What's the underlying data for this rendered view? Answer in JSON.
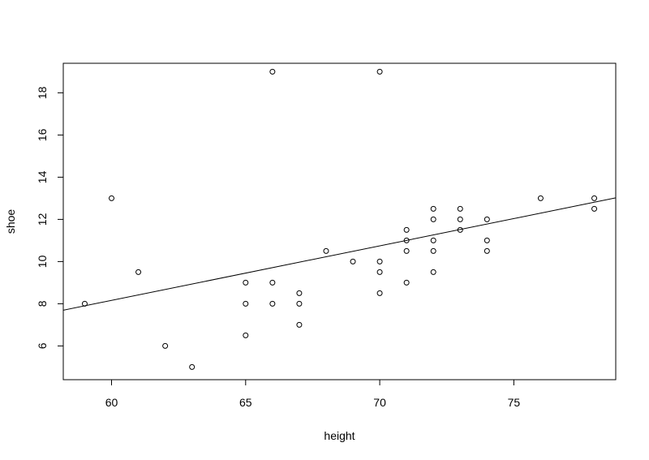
{
  "chart_data": {
    "type": "scatter",
    "title": "",
    "xlabel": "height",
    "ylabel": "shoe",
    "xlim": [
      58.2,
      78.8
    ],
    "ylim": [
      4.4,
      19.4
    ],
    "x_ticks": [
      60,
      65,
      70,
      75
    ],
    "y_ticks": [
      6,
      8,
      10,
      12,
      14,
      16,
      18
    ],
    "grid": false,
    "colors": {
      "points": "#000000",
      "line": "#000000",
      "background": "#ffffff"
    },
    "points": [
      {
        "x": 59,
        "y": 8
      },
      {
        "x": 60,
        "y": 13
      },
      {
        "x": 61,
        "y": 9.5
      },
      {
        "x": 62,
        "y": 6
      },
      {
        "x": 63,
        "y": 5
      },
      {
        "x": 65,
        "y": 9
      },
      {
        "x": 65,
        "y": 8
      },
      {
        "x": 65,
        "y": 6.5
      },
      {
        "x": 66,
        "y": 19
      },
      {
        "x": 66,
        "y": 9
      },
      {
        "x": 66,
        "y": 8
      },
      {
        "x": 67,
        "y": 8.5
      },
      {
        "x": 67,
        "y": 8
      },
      {
        "x": 67,
        "y": 7
      },
      {
        "x": 68,
        "y": 10.5
      },
      {
        "x": 69,
        "y": 10
      },
      {
        "x": 70,
        "y": 19
      },
      {
        "x": 70,
        "y": 10
      },
      {
        "x": 70,
        "y": 9.5
      },
      {
        "x": 70,
        "y": 8.5
      },
      {
        "x": 71,
        "y": 11.5
      },
      {
        "x": 71,
        "y": 11
      },
      {
        "x": 71,
        "y": 10.5
      },
      {
        "x": 71,
        "y": 9
      },
      {
        "x": 72,
        "y": 12.5
      },
      {
        "x": 72,
        "y": 12
      },
      {
        "x": 72,
        "y": 11
      },
      {
        "x": 72,
        "y": 10.5
      },
      {
        "x": 72,
        "y": 9.5
      },
      {
        "x": 73,
        "y": 12.5
      },
      {
        "x": 73,
        "y": 12
      },
      {
        "x": 73,
        "y": 11.5
      },
      {
        "x": 74,
        "y": 12
      },
      {
        "x": 74,
        "y": 11
      },
      {
        "x": 74,
        "y": 10.5
      },
      {
        "x": 76,
        "y": 13
      },
      {
        "x": 78,
        "y": 13
      },
      {
        "x": 78,
        "y": 12.5
      }
    ],
    "regression_line": {
      "intercept": -7.35,
      "slope": 0.2585
    }
  }
}
